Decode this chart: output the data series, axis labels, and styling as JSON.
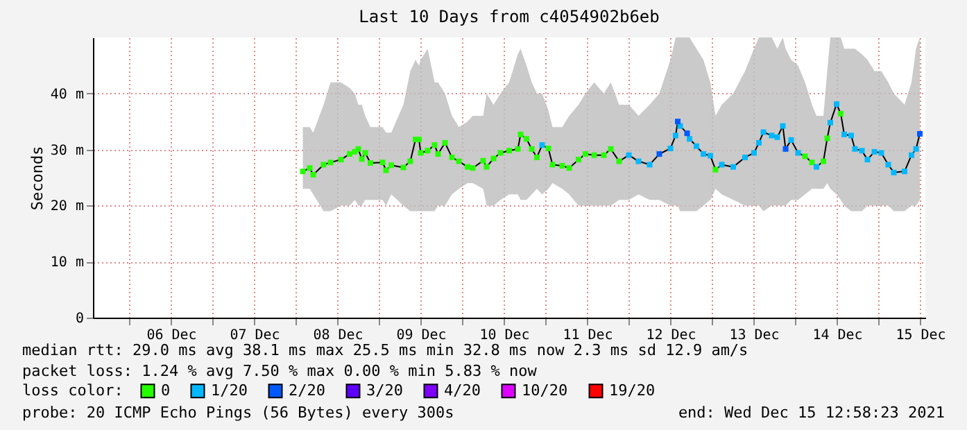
{
  "chart_data": {
    "type": "line",
    "title": "Last 10 Days from c4054902b6eb",
    "ylabel": "Seconds",
    "legend_title": "loss color:",
    "xlim": [
      "2021-12-05T13:30",
      "2021-12-15T13:30"
    ],
    "xticks": [
      {
        "value": "2021-12-06T00:00",
        "label": null
      },
      {
        "value": "2021-12-06T12:00",
        "label": "06 Dec"
      },
      {
        "value": "2021-12-07T00:00",
        "label": null
      },
      {
        "value": "2021-12-07T12:00",
        "label": "07 Dec"
      },
      {
        "value": "2021-12-08T00:00",
        "label": null
      },
      {
        "value": "2021-12-08T12:00",
        "label": "08 Dec"
      },
      {
        "value": "2021-12-09T00:00",
        "label": null
      },
      {
        "value": "2021-12-09T12:00",
        "label": "09 Dec"
      },
      {
        "value": "2021-12-10T00:00",
        "label": null
      },
      {
        "value": "2021-12-10T12:00",
        "label": "10 Dec"
      },
      {
        "value": "2021-12-11T00:00",
        "label": null
      },
      {
        "value": "2021-12-11T12:00",
        "label": "11 Dec"
      },
      {
        "value": "2021-12-12T00:00",
        "label": null
      },
      {
        "value": "2021-12-12T12:00",
        "label": "12 Dec"
      },
      {
        "value": "2021-12-13T00:00",
        "label": null
      },
      {
        "value": "2021-12-13T12:00",
        "label": "13 Dec"
      },
      {
        "value": "2021-12-14T00:00",
        "label": null
      },
      {
        "value": "2021-12-14T12:00",
        "label": "14 Dec"
      },
      {
        "value": "2021-12-15T00:00",
        "label": null
      },
      {
        "value": "2021-12-15T12:00",
        "label": "15 Dec"
      }
    ],
    "ylim": [
      0,
      50
    ],
    "yticks": [
      0,
      {
        "value": 10,
        "label": "10 m"
      },
      {
        "value": 20,
        "label": "20 m"
      },
      {
        "value": 30,
        "label": "30 m"
      },
      {
        "value": 40,
        "label": "40 m"
      }
    ],
    "grid": true,
    "legend": "bottom",
    "series": [
      {
        "type": "line",
        "color": "#000000",
        "marker": "none",
        "line_style": "solid",
        "x": [
          "2021-12-08T02:00",
          "2021-12-08T04:00",
          "2021-12-08T05:00",
          "2021-12-08T08:00",
          "2021-12-08T10:00",
          "2021-12-08T13:00",
          "2021-12-08T15:30",
          "2021-12-08T17:00",
          "2021-12-08T18:00",
          "2021-12-08T19:00",
          "2021-12-08T20:00",
          "2021-12-08T21:30",
          "2021-12-09T01:00",
          "2021-12-09T02:00",
          "2021-12-09T03:30",
          "2021-12-09T07:00",
          "2021-12-09T09:00",
          "2021-12-09T10:30",
          "2021-12-09T11:30",
          "2021-12-09T12:00",
          "2021-12-09T14:00",
          "2021-12-09T16:00",
          "2021-12-09T17:00",
          "2021-12-09T19:00",
          "2021-12-09T21:00",
          "2021-12-09T23:00",
          "2021-12-10T01:30",
          "2021-12-10T03:00",
          "2021-12-10T06:00",
          "2021-12-10T07:00",
          "2021-12-10T09:00",
          "2021-12-10T11:00",
          "2021-12-10T13:30",
          "2021-12-10T16:00",
          "2021-12-10T16:48",
          "2021-12-10T18:30",
          "2021-12-10T20:00",
          "2021-12-10T21:30",
          "2021-12-10T23:00",
          "2021-12-11T00:48",
          "2021-12-11T02:00",
          "2021-12-11T04:48",
          "2021-12-11T06:48",
          "2021-12-11T09:30",
          "2021-12-11T11:30",
          "2021-12-11T14:00",
          "2021-12-11T16:48",
          "2021-12-11T18:48",
          "2021-12-11T21:12",
          "2021-12-12T00:00",
          "2021-12-12T02:48",
          "2021-12-12T06:00",
          "2021-12-12T08:48",
          "2021-12-12T12:00",
          "2021-12-12T13:30",
          "2021-12-12T14:06",
          "2021-12-12T14:48",
          "2021-12-12T16:48",
          "2021-12-12T17:30",
          "2021-12-12T19:30",
          "2021-12-12T21:30",
          "2021-12-12T23:30",
          "2021-12-13T01:00",
          "2021-12-13T02:48",
          "2021-12-13T06:06",
          "2021-12-13T09:30",
          "2021-12-13T12:06",
          "2021-12-13T13:30",
          "2021-12-13T14:48",
          "2021-12-13T17:12",
          "2021-12-13T18:48",
          "2021-12-13T20:24",
          "2021-12-13T21:12",
          "2021-12-13T22:48",
          "2021-12-14T00:48",
          "2021-12-14T02:48",
          "2021-12-14T04:48",
          "2021-12-14T06:06",
          "2021-12-14T08:06",
          "2021-12-14T09:12",
          "2021-12-14T10:06",
          "2021-12-14T11:54",
          "2021-12-14T13:06",
          "2021-12-14T14:06",
          "2021-12-14T16:06",
          "2021-12-14T17:12",
          "2021-12-14T19:12",
          "2021-12-14T20:48",
          "2021-12-14T22:48",
          "2021-12-15T00:48",
          "2021-12-15T02:48",
          "2021-12-15T04:24",
          "2021-12-15T07:30",
          "2021-12-15T09:30",
          "2021-12-15T10:48",
          "2021-12-15T11:54"
        ],
        "values": [
          26.1,
          26.7,
          25.5,
          27.3,
          27.7,
          28.2,
          29.2,
          29.6,
          30.1,
          28.3,
          29.4,
          27.6,
          27.7,
          26.3,
          27.2,
          26.8,
          27.9,
          31.8,
          31.8,
          29.4,
          29.8,
          30.8,
          29.2,
          31.2,
          28.6,
          27.9,
          26.9,
          26.7,
          28.0,
          26.9,
          28.4,
          29.4,
          29.8,
          30.1,
          32.7,
          31.9,
          30.1,
          28.6,
          30.8,
          30.2,
          27.3,
          27.1,
          26.7,
          28.2,
          29.2,
          29.0,
          29.0,
          30.1,
          27.9,
          29.0,
          27.9,
          27.3,
          29.2,
          30.2,
          32.5,
          35.0,
          34.2,
          32.9,
          31.9,
          30.6,
          29.2,
          28.9,
          26.4,
          27.3,
          26.9,
          28.6,
          29.4,
          31.2,
          33.1,
          32.5,
          32.2,
          34.2,
          30.1,
          31.7,
          29.4,
          28.8,
          27.7,
          26.9,
          27.9,
          32.0,
          34.8,
          38.1,
          36.4,
          32.7,
          32.5,
          30.1,
          29.8,
          28.2,
          29.6,
          29.4,
          27.3,
          25.9,
          26.1,
          29.0,
          30.1,
          32.8
        ],
        "lower": [
          23,
          23,
          22,
          19,
          19,
          20,
          20,
          21,
          20,
          20,
          21,
          21,
          21,
          20,
          22,
          20,
          19,
          19,
          19,
          19,
          19,
          19,
          20,
          20,
          22,
          23,
          24,
          24,
          23,
          20,
          20,
          21,
          22,
          22,
          21,
          21,
          22,
          23,
          22,
          23,
          24,
          23,
          22,
          20,
          20,
          20,
          20,
          20,
          21,
          21,
          22,
          21,
          21,
          20,
          20,
          20,
          19,
          19,
          19,
          19,
          20,
          21,
          23,
          22,
          21,
          20,
          20,
          20,
          19,
          20,
          20,
          20,
          20,
          21,
          21,
          22,
          23,
          23,
          23,
          24,
          23,
          22,
          21,
          20,
          19,
          19,
          19,
          20,
          20,
          20,
          20,
          19,
          19,
          20,
          20,
          21
        ],
        "upper": [
          34,
          34,
          33,
          38,
          42,
          42,
          41,
          40,
          38,
          38,
          36,
          34,
          34,
          33,
          33,
          38,
          44,
          46,
          45,
          46,
          48,
          42,
          42,
          40,
          36,
          34,
          35,
          36,
          36,
          40,
          38,
          40,
          42,
          47,
          48,
          45,
          42,
          40,
          40,
          37,
          34,
          34,
          36,
          38,
          40,
          42,
          40,
          42,
          38,
          38,
          36,
          38,
          40,
          46,
          50,
          50,
          50,
          50,
          50,
          48,
          46,
          42,
          36,
          38,
          40,
          44,
          48,
          50,
          50,
          50,
          48,
          50,
          48,
          46,
          45,
          42,
          38,
          36,
          36,
          44,
          50,
          50,
          50,
          48,
          48,
          48,
          47,
          46,
          44,
          44,
          42,
          40,
          38,
          42,
          48,
          50
        ]
      },
      {
        "type": "scatter",
        "name": "0",
        "color": "#26ff00",
        "marker": "square",
        "x": [
          "2021-12-08T02:00",
          "2021-12-08T04:00",
          "2021-12-08T05:00",
          "2021-12-08T08:00",
          "2021-12-08T10:00",
          "2021-12-08T13:00",
          "2021-12-08T15:30",
          "2021-12-08T17:00",
          "2021-12-08T18:00",
          "2021-12-08T19:00",
          "2021-12-08T20:00",
          "2021-12-08T21:30",
          "2021-12-09T01:00",
          "2021-12-09T02:00",
          "2021-12-09T03:30",
          "2021-12-09T07:00",
          "2021-12-09T09:00",
          "2021-12-09T10:30",
          "2021-12-09T11:30",
          "2021-12-09T12:00",
          "2021-12-09T14:00",
          "2021-12-09T16:00",
          "2021-12-09T17:00",
          "2021-12-09T19:00",
          "2021-12-09T21:00",
          "2021-12-09T23:00",
          "2021-12-10T01:30",
          "2021-12-10T03:00",
          "2021-12-10T06:00",
          "2021-12-10T07:00",
          "2021-12-10T09:00",
          "2021-12-10T11:00",
          "2021-12-10T13:30",
          "2021-12-10T16:00",
          "2021-12-10T16:48",
          "2021-12-10T18:30",
          "2021-12-10T20:00",
          "2021-12-10T21:30",
          "2021-12-11T00:48",
          "2021-12-11T02:00",
          "2021-12-11T04:48",
          "2021-12-11T06:48",
          "2021-12-11T09:30",
          "2021-12-11T11:30",
          "2021-12-11T14:00",
          "2021-12-11T16:48",
          "2021-12-11T18:48",
          "2021-12-11T21:12",
          "2021-12-13T01:00",
          "2021-12-14T02:48",
          "2021-12-14T04:48",
          "2021-12-14T08:06",
          "2021-12-14T09:12",
          "2021-12-14T13:06"
        ],
        "values": [
          26.1,
          26.7,
          25.5,
          27.3,
          27.7,
          28.2,
          29.2,
          29.6,
          30.1,
          28.3,
          29.4,
          27.6,
          27.7,
          26.3,
          27.2,
          26.8,
          27.9,
          31.8,
          31.8,
          29.4,
          29.8,
          30.8,
          29.2,
          31.2,
          28.6,
          27.9,
          26.9,
          26.7,
          28.0,
          26.9,
          28.4,
          29.4,
          29.8,
          30.1,
          32.7,
          31.9,
          30.1,
          28.6,
          30.2,
          27.3,
          27.1,
          26.7,
          28.2,
          29.2,
          29.0,
          29.0,
          30.1,
          27.9,
          26.4,
          28.8,
          27.7,
          27.9,
          32.0,
          36.4
        ]
      },
      {
        "type": "scatter",
        "name": "1/20",
        "color": "#00b8ff",
        "marker": "square",
        "x": [
          "2021-12-10T23:00",
          "2021-12-12T00:00",
          "2021-12-12T02:48",
          "2021-12-12T06:00",
          "2021-12-12T12:00",
          "2021-12-12T13:30",
          "2021-12-12T14:48",
          "2021-12-12T17:30",
          "2021-12-12T19:30",
          "2021-12-12T21:30",
          "2021-12-12T23:30",
          "2021-12-13T02:48",
          "2021-12-13T06:06",
          "2021-12-13T09:30",
          "2021-12-13T12:06",
          "2021-12-13T13:30",
          "2021-12-13T14:48",
          "2021-12-13T17:12",
          "2021-12-13T18:48",
          "2021-12-13T20:24",
          "2021-12-13T22:48",
          "2021-12-14T00:48",
          "2021-12-14T06:06",
          "2021-12-14T10:06",
          "2021-12-14T11:54",
          "2021-12-14T14:06",
          "2021-12-14T16:06",
          "2021-12-14T17:12",
          "2021-12-14T19:12",
          "2021-12-14T20:48",
          "2021-12-14T22:48",
          "2021-12-15T00:48",
          "2021-12-15T02:48",
          "2021-12-15T04:24",
          "2021-12-15T07:30",
          "2021-12-15T09:30",
          "2021-12-15T10:48"
        ],
        "values": [
          30.8,
          29.0,
          27.9,
          27.3,
          30.2,
          32.5,
          34.2,
          31.9,
          30.6,
          29.2,
          28.9,
          27.3,
          26.9,
          28.6,
          29.4,
          31.2,
          33.1,
          32.5,
          32.2,
          34.2,
          31.7,
          29.4,
          26.9,
          34.8,
          38.1,
          32.7,
          32.5,
          30.1,
          29.8,
          28.2,
          29.6,
          29.4,
          27.3,
          25.9,
          26.1,
          29.0,
          30.1
        ]
      },
      {
        "type": "scatter",
        "name": "2/20",
        "color": "#0059ff",
        "marker": "square",
        "x": [
          "2021-12-12T08:48",
          "2021-12-12T14:06",
          "2021-12-12T16:48",
          "2021-12-13T21:12",
          "2021-12-15T11:54"
        ],
        "values": [
          29.2,
          35.0,
          32.9,
          30.1,
          32.8
        ]
      },
      {
        "type": "scatter",
        "name": "3/20",
        "color": "#5e00ff",
        "marker": "square"
      },
      {
        "type": "scatter",
        "name": "4/20",
        "color": "#7e00ff",
        "marker": "square"
      },
      {
        "type": "scatter",
        "name": "10/20",
        "color": "#dd00ff",
        "marker": "square"
      },
      {
        "type": "scatter",
        "name": "19/20",
        "color": "#ff0000",
        "marker": "square"
      }
    ],
    "annotations": [
      "median rtt:  29.0 ms avg  38.1 ms max  25.5 ms min  32.8 ms now  2.3 ms sd  12.9   am/s",
      "packet loss: 1.24 % avg  7.50 % max  0.00 % min  5.83 % now",
      "probe:       20 ICMP Echo Pings (56 Bytes) every 300s",
      "end: Wed Dec 15 12:58:23 2021"
    ]
  }
}
